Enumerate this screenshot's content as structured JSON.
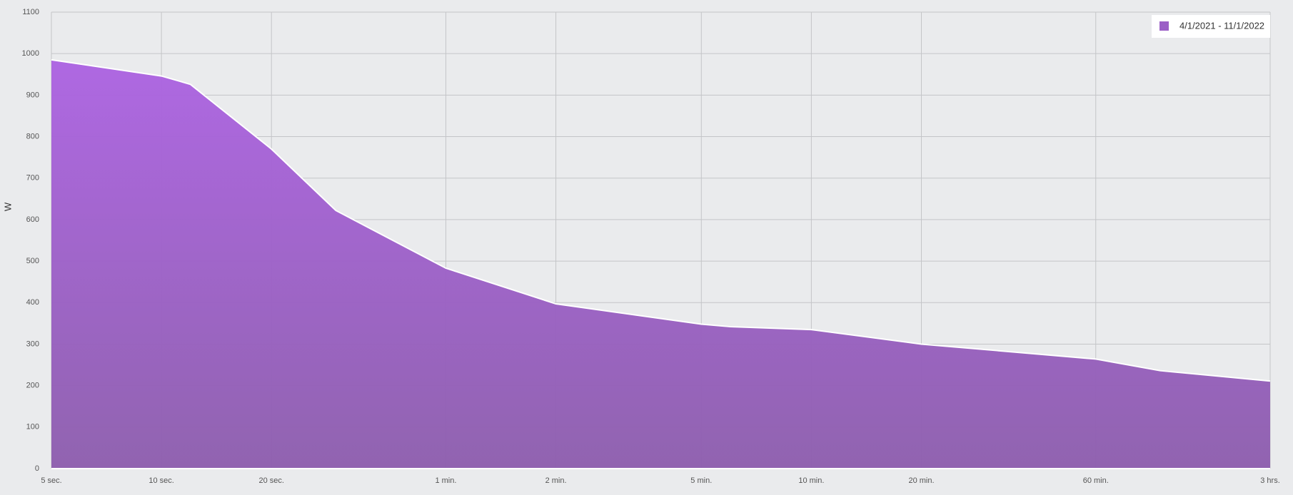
{
  "chart_data": {
    "type": "area",
    "y_label": "W",
    "log_x": true,
    "grid": true,
    "legend_position": "top-right",
    "series": [
      {
        "name": "4/1/2021 - 11/1/2022",
        "color": "#9b5fc6",
        "x": [
          5,
          10,
          12,
          20,
          30,
          60,
          120,
          300,
          360,
          600,
          1200,
          3600,
          5400,
          10800
        ],
        "values": [
          985,
          946,
          926,
          770,
          622,
          483,
          397,
          348,
          342,
          335,
          300,
          264,
          236,
          211
        ]
      }
    ],
    "xlim": [
      5,
      10800
    ],
    "xticks": [
      {
        "value": 5,
        "label": "5 sec."
      },
      {
        "value": 10,
        "label": "10 sec."
      },
      {
        "value": 20,
        "label": "20 sec."
      },
      {
        "value": 60,
        "label": "1 min."
      },
      {
        "value": 120,
        "label": "2 min."
      },
      {
        "value": 300,
        "label": "5 min."
      },
      {
        "value": 600,
        "label": "10 min."
      },
      {
        "value": 1200,
        "label": "20 min."
      },
      {
        "value": 3600,
        "label": "60 min."
      },
      {
        "value": 10800,
        "label": "3 hrs."
      }
    ],
    "ylim": [
      0,
      1100
    ],
    "yticks": [
      0,
      100,
      200,
      300,
      400,
      500,
      600,
      700,
      800,
      900,
      1000,
      1100
    ]
  }
}
